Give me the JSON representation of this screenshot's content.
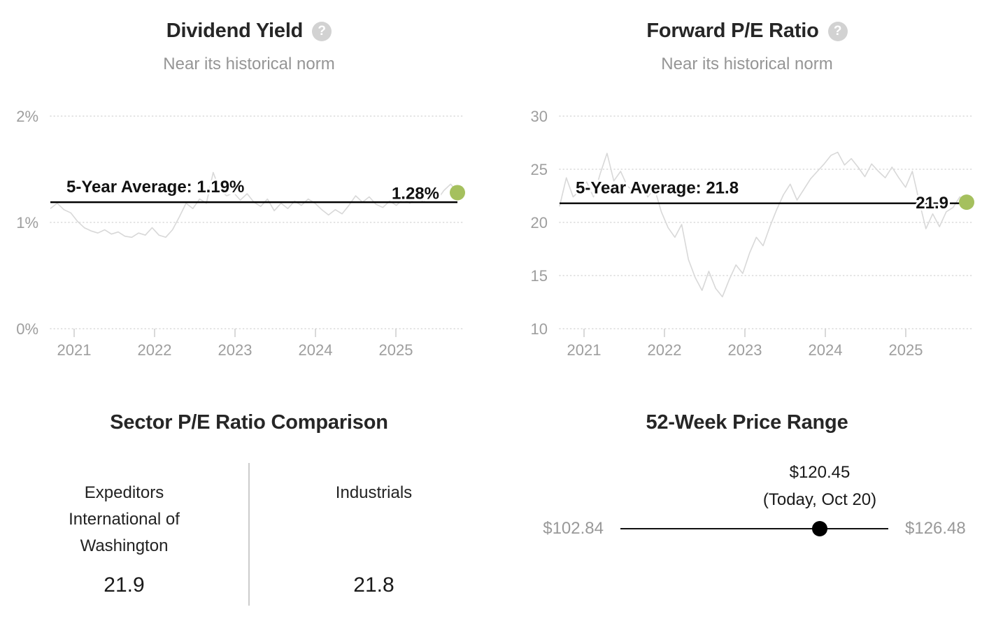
{
  "colors": {
    "accent": "#a5c05e",
    "series": "#d8d8d8",
    "grid": "#d9d9d9",
    "axis_text": "#9e9e9e",
    "average_line": "#000000",
    "divider": "#cccccc",
    "help_icon_bg": "#d2d2d2"
  },
  "icons": {
    "help_glyph": "?"
  },
  "chart_data": [
    {
      "type": "line",
      "title": "Dividend Yield",
      "subtitle": "Near its historical norm",
      "ylim": [
        0,
        2
      ],
      "y_ticks": [
        {
          "value": 2,
          "label": "2%"
        },
        {
          "value": 1,
          "label": "1%"
        },
        {
          "value": 0,
          "label": "0%"
        }
      ],
      "x_ticks": [
        "2021",
        "2022",
        "2023",
        "2024",
        "2025"
      ],
      "x_range": "2020-10 to 2025-10, monthly samples",
      "average": 1.19,
      "average_label": "5-Year Average: 1.19%",
      "current": 1.28,
      "current_label": "1.28%",
      "values": [
        1.13,
        1.18,
        1.12,
        1.09,
        1.01,
        0.95,
        0.92,
        0.9,
        0.93,
        0.89,
        0.91,
        0.87,
        0.86,
        0.9,
        0.88,
        0.95,
        0.88,
        0.86,
        0.93,
        1.05,
        1.18,
        1.13,
        1.22,
        1.18,
        1.47,
        1.3,
        1.25,
        1.28,
        1.21,
        1.27,
        1.19,
        1.15,
        1.22,
        1.11,
        1.18,
        1.13,
        1.2,
        1.16,
        1.22,
        1.18,
        1.12,
        1.07,
        1.12,
        1.08,
        1.16,
        1.25,
        1.19,
        1.24,
        1.17,
        1.14,
        1.2,
        1.16,
        1.22,
        1.18,
        1.24,
        1.19,
        1.26,
        1.21,
        1.3,
        1.36,
        1.28
      ]
    },
    {
      "type": "line",
      "title": "Forward P/E Ratio",
      "subtitle": "Near its historical norm",
      "ylim": [
        10,
        30
      ],
      "y_ticks": [
        {
          "value": 30,
          "label": "30"
        },
        {
          "value": 25,
          "label": "25"
        },
        {
          "value": 20,
          "label": "20"
        },
        {
          "value": 15,
          "label": "15"
        },
        {
          "value": 10,
          "label": "10"
        }
      ],
      "x_ticks": [
        "2021",
        "2022",
        "2023",
        "2024",
        "2025"
      ],
      "x_range": "2020-10 to 2025-10, monthly samples",
      "average": 21.8,
      "average_label": "5-Year Average: 21.8",
      "current": 21.9,
      "current_label": "21.9",
      "values": [
        21.5,
        24.2,
        22.4,
        23.0,
        23.8,
        22.4,
        24.6,
        26.5,
        23.9,
        24.8,
        23.4,
        22.9,
        23.8,
        22.4,
        23.2,
        21.0,
        19.5,
        18.6,
        19.8,
        16.5,
        14.8,
        13.6,
        15.4,
        13.8,
        13.0,
        14.6,
        16.0,
        15.2,
        17.1,
        18.6,
        17.8,
        19.6,
        21.2,
        22.6,
        23.6,
        22.1,
        23.1,
        24.1,
        24.8,
        25.5,
        26.3,
        26.6,
        25.4,
        26.0,
        25.2,
        24.3,
        25.5,
        24.8,
        24.2,
        25.2,
        24.2,
        23.3,
        24.8,
        22.0,
        19.4,
        20.8,
        19.6,
        21.0,
        21.4,
        22.4,
        21.9
      ]
    },
    {
      "type": "comparison",
      "title": "Sector P/E Ratio Comparison",
      "columns": [
        {
          "label": "Expeditors International of Washington",
          "value": "21.9"
        },
        {
          "label": "Industrials",
          "value": "21.8"
        }
      ]
    },
    {
      "type": "range",
      "title": "52-Week Price Range",
      "min": 102.84,
      "max": 126.48,
      "current": 120.45,
      "min_label": "$102.84",
      "max_label": "$126.48",
      "current_price_label": "$120.45",
      "current_date_label": "(Today, Oct 20)"
    }
  ]
}
